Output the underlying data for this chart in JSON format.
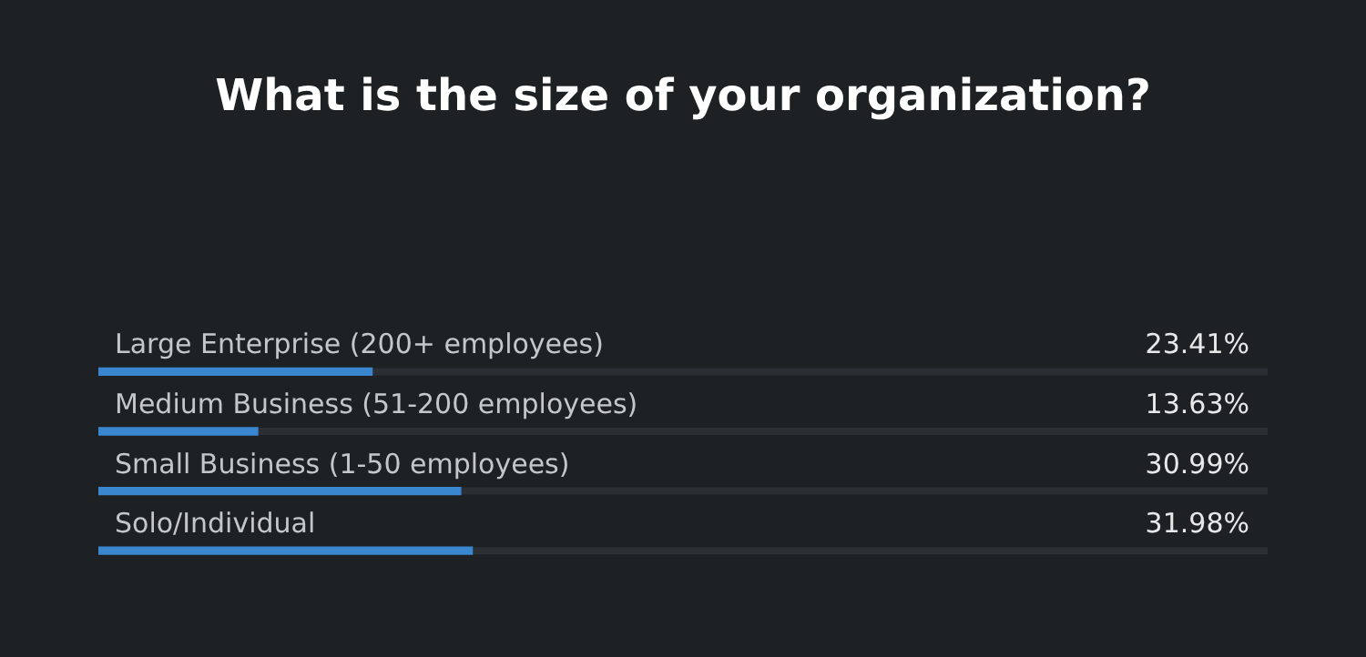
{
  "chart_data": {
    "type": "bar",
    "orientation": "horizontal",
    "title": "What is the size of your organization?",
    "categories": [
      "Large Enterprise (200+ employees)",
      "Medium Business (51-200 employees)",
      "Small Business (1-50 employees)",
      "Solo/Individual"
    ],
    "values": [
      23.41,
      13.63,
      30.99,
      31.98
    ],
    "value_labels": [
      "23.41%",
      "13.63%",
      "30.99%",
      "31.98%"
    ],
    "color": "#3a87d0",
    "xlim": [
      0,
      100
    ],
    "legend": false
  }
}
